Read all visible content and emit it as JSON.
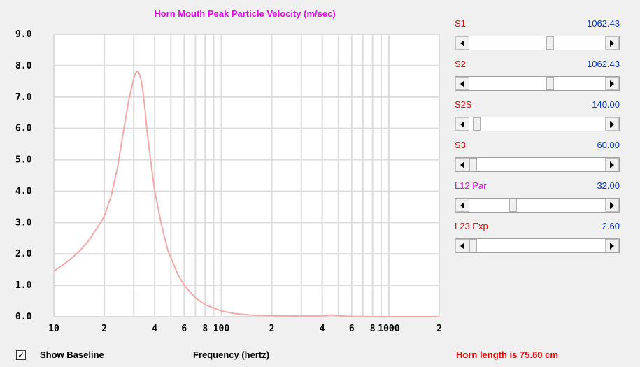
{
  "chart_data": {
    "type": "line",
    "title": "Horn Mouth Peak Particle Velocity (m/sec)",
    "xlabel": "Frequency (hertz)",
    "ylabel": "",
    "x_scale": "log",
    "xlim": [
      10,
      2000
    ],
    "ylim": [
      0,
      9
    ],
    "yticks": [
      "0.0",
      "1.0",
      "2.0",
      "3.0",
      "4.0",
      "5.0",
      "6.0",
      "7.0",
      "8.0",
      "9.0"
    ],
    "xtick_values": [
      10,
      20,
      40,
      60,
      80,
      100,
      200,
      400,
      600,
      800,
      1000,
      2000
    ],
    "xtick_labels": [
      "10",
      "2",
      "4",
      "6",
      "8",
      "100",
      "2",
      "4",
      "6",
      "8",
      "1000",
      "2"
    ],
    "grid": true,
    "series": [
      {
        "color": "#f4aaaa",
        "x": [
          10,
          12,
          14,
          16,
          18,
          20,
          22,
          24,
          26,
          28,
          30,
          31,
          32,
          33,
          34,
          35,
          36,
          38,
          40,
          44,
          48,
          55,
          60,
          70,
          80,
          100,
          120,
          150,
          200,
          300,
          400,
          440,
          470,
          500,
          550,
          600,
          800,
          1000,
          2000
        ],
        "y": [
          1.45,
          1.75,
          2.05,
          2.4,
          2.8,
          3.2,
          3.85,
          4.75,
          5.9,
          6.9,
          7.6,
          7.8,
          7.8,
          7.6,
          7.2,
          6.6,
          5.9,
          4.9,
          4.0,
          2.9,
          2.1,
          1.35,
          1.0,
          0.6,
          0.38,
          0.18,
          0.1,
          0.05,
          0.03,
          0.02,
          0.02,
          0.05,
          0.05,
          0.03,
          0.02,
          0.01,
          0.0,
          0.0,
          0.0
        ]
      }
    ]
  },
  "sliders": [
    {
      "label": "S1",
      "value": "1062.43",
      "label_color": "#ee0000",
      "value_color": "#0033cc",
      "position": 0.6
    },
    {
      "label": "S2",
      "value": "1062.43",
      "label_color": "#ee0000",
      "value_color": "#0033cc",
      "position": 0.6
    },
    {
      "label": "S2S",
      "value": "140.00",
      "label_color": "#ee0000",
      "value_color": "#0033cc",
      "position": 0.03
    },
    {
      "label": "S3",
      "value": "60.00",
      "label_color": "#ee0000",
      "value_color": "#0033cc",
      "position": 0.0
    },
    {
      "label": "L12  Par",
      "value": "32.00",
      "label_color": "#ee00ee",
      "value_color": "#0033cc",
      "position": 0.31
    },
    {
      "label": "L23  Exp",
      "value": "2.60",
      "label_color": "#ee0000",
      "value_color": "#0033cc",
      "position": 0.0
    }
  ],
  "bottom": {
    "checkbox_checked": true,
    "checkmark": "✓",
    "show_baseline": "Show Baseline",
    "frequency_label": "Frequency (hertz)",
    "horn_length": "Horn length is 75.60 cm"
  },
  "colors": {
    "title": "#ee00ee",
    "plot_bg": "#ffffff",
    "grid": "#dcdcdc",
    "curve": "#f4aaaa"
  }
}
